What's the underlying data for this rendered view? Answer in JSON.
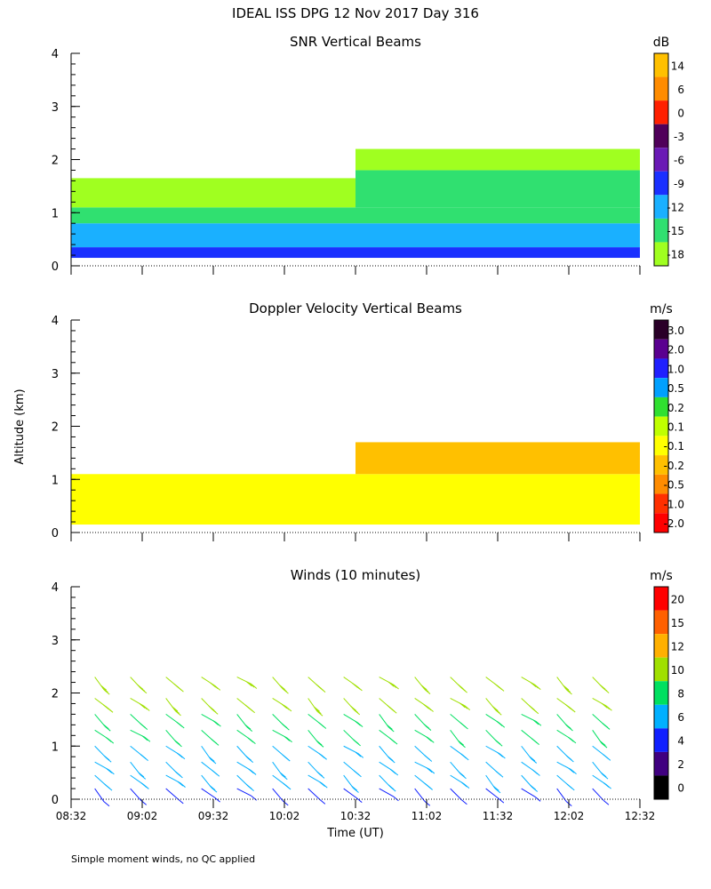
{
  "figure": {
    "title": "IDEAL ISS DPG  12 Nov 2017 Day 316",
    "ylabel": "Altitude (km)",
    "xlabel": "Time (UT)",
    "footnote": "Simple moment winds, no QC applied"
  },
  "chart_data": [
    {
      "type": "heatmap",
      "title": "SNR Vertical Beams",
      "units": "dB",
      "ylim": [
        0,
        4
      ],
      "yticks": [
        "0",
        "1",
        "2",
        "3",
        "4"
      ],
      "colorbar": {
        "labels": [
          "14",
          "6",
          "0",
          "-3",
          "-6",
          "-9",
          "-12",
          "-15",
          "-18"
        ],
        "colors": [
          "#ffc000",
          "#ff8c00",
          "#ff2000",
          "#50005a",
          "#6a1ab5",
          "#1a30ff",
          "#1ab0ff",
          "#30e070",
          "#a0ff20"
        ]
      },
      "layers": [
        {
          "t0": "08:32",
          "t1": "12:32",
          "z0": 0.15,
          "z1": 0.35,
          "color": "#1a30ff"
        },
        {
          "t0": "08:32",
          "t1": "12:32",
          "z0": 0.35,
          "z1": 0.8,
          "color": "#1ab0ff"
        },
        {
          "t0": "08:32",
          "t1": "12:32",
          "z0": 0.8,
          "z1": 1.1,
          "color": "#30e070"
        },
        {
          "t0": "08:32",
          "t1": "10:32",
          "z0": 1.1,
          "z1": 1.65,
          "color": "#a0ff20"
        },
        {
          "t0": "10:32",
          "t1": "12:32",
          "z0": 1.1,
          "z1": 1.8,
          "color": "#30e070"
        },
        {
          "t0": "10:32",
          "t1": "12:32",
          "z0": 1.8,
          "z1": 2.2,
          "color": "#a0ff20"
        }
      ]
    },
    {
      "type": "heatmap",
      "title": "Doppler Velocity Vertical Beams",
      "units": "m/s",
      "ylim": [
        0,
        4
      ],
      "yticks": [
        "0",
        "1",
        "2",
        "3",
        "4"
      ],
      "colorbar": {
        "labels": [
          "3.0",
          "2.0",
          "1.0",
          "0.5",
          "0.2",
          "0.1",
          "-0.1",
          "-0.2",
          "-0.5",
          "-1.0",
          "-2.0"
        ],
        "colors": [
          "#2a0028",
          "#5a0090",
          "#2020ff",
          "#00a0ff",
          "#30e030",
          "#c0ff00",
          "#ffff00",
          "#ffc000",
          "#ff8c00",
          "#ff3000",
          "#ff0000"
        ]
      },
      "layers": [
        {
          "t0": "08:32",
          "t1": "12:32",
          "z0": 0.15,
          "z1": 1.1,
          "color": "#ffff00"
        },
        {
          "t0": "10:32",
          "t1": "12:32",
          "z0": 1.1,
          "z1": 1.7,
          "color": "#ffc000"
        }
      ]
    },
    {
      "type": "barbs",
      "title": "Winds (10 minutes)",
      "units": "m/s",
      "ylim": [
        0,
        4
      ],
      "yticks": [
        "0",
        "1",
        "2",
        "3",
        "4"
      ],
      "xticks": [
        "08:32",
        "09:02",
        "09:32",
        "10:02",
        "10:32",
        "11:02",
        "11:32",
        "12:02",
        "12:32"
      ],
      "colorbar": {
        "labels": [
          "20",
          "15",
          "12",
          "10",
          "8",
          "6",
          "4",
          "2",
          "0"
        ],
        "colors": [
          "#ff0000",
          "#ff6000",
          "#ffb000",
          "#a0e000",
          "#00e060",
          "#00b0ff",
          "#1020ff",
          "#400080",
          "#000000"
        ]
      },
      "speed_bins": [
        0,
        2,
        4,
        6,
        8,
        10,
        12,
        15,
        20,
        24
      ],
      "profile_times": [
        "08:42",
        "08:57",
        "09:12",
        "09:27",
        "09:42",
        "09:57",
        "10:12",
        "10:27",
        "10:42",
        "10:57",
        "11:12",
        "11:27",
        "11:42",
        "11:57",
        "12:12"
      ],
      "heights_km": [
        0.2,
        0.45,
        0.7,
        1.0,
        1.3,
        1.6,
        1.9,
        2.3
      ],
      "speed_profile_ms": [
        4,
        6,
        6,
        7,
        8,
        9,
        10,
        11
      ]
    }
  ]
}
